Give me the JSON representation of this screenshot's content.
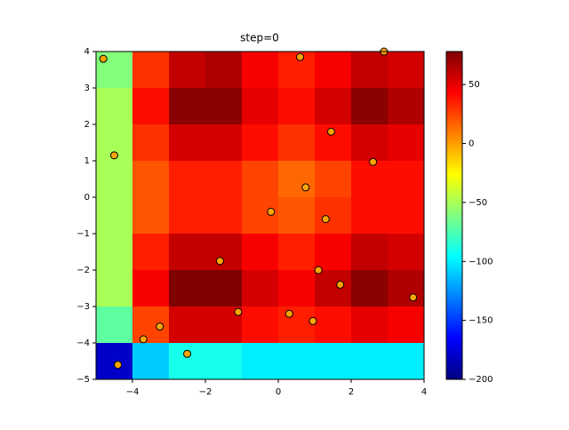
{
  "chart_data": {
    "type": "heatmap",
    "title": "step=0",
    "heatmap": {
      "x": [
        -4.5,
        -3.5,
        -2.5,
        -1.5,
        -0.5,
        0.5,
        1.5,
        2.5,
        3.5
      ],
      "y": [
        3.5,
        2.5,
        1.5,
        0.5,
        -0.5,
        -1.5,
        -2.5,
        -3.5,
        -4.5
      ],
      "z": [
        [
          -60,
          30,
          60,
          65,
          45,
          35,
          45,
          60,
          55
        ],
        [
          -50,
          40,
          75,
          75,
          50,
          40,
          55,
          75,
          65
        ],
        [
          -50,
          30,
          55,
          55,
          40,
          30,
          40,
          55,
          50
        ],
        [
          -50,
          20,
          35,
          35,
          25,
          15,
          25,
          40,
          40
        ],
        [
          -50,
          20,
          35,
          35,
          25,
          20,
          30,
          40,
          40
        ],
        [
          -50,
          35,
          60,
          60,
          45,
          35,
          45,
          60,
          55
        ],
        [
          -50,
          45,
          78,
          78,
          55,
          45,
          60,
          75,
          65
        ],
        [
          -70,
          25,
          55,
          55,
          40,
          35,
          40,
          50,
          45
        ],
        [
          -180,
          -110,
          -90,
          -90,
          -100,
          -100,
          -100,
          -100,
          -100
        ]
      ]
    },
    "colormap": "jet",
    "clim": [
      -200,
      78
    ],
    "cticks": [
      {
        "value": -200,
        "label": "−200"
      },
      {
        "value": -150,
        "label": "−150"
      },
      {
        "value": -100,
        "label": "−100"
      },
      {
        "value": -50,
        "label": "−50"
      },
      0,
      50
    ],
    "scatter": {
      "color": "#ffa500",
      "x": [
        -4.8,
        0.6,
        2.9,
        1.45,
        -4.5,
        2.6,
        0.75,
        -0.2,
        1.3,
        -1.6,
        1.1,
        1.7,
        3.7,
        -1.1,
        0.3,
        -3.25,
        0.95,
        -3.7,
        -2.5,
        -4.4
      ],
      "y": [
        3.8,
        3.85,
        4.0,
        1.8,
        1.15,
        0.97,
        0.27,
        -0.4,
        -0.6,
        -1.75,
        -2.0,
        -2.4,
        -2.75,
        -3.15,
        -3.2,
        -3.55,
        -3.4,
        -3.9,
        -4.3,
        -4.6
      ]
    },
    "xlim": [
      -5,
      4
    ],
    "ylim": [
      -5,
      4
    ],
    "xticks": [
      {
        "value": -4,
        "label": "−4"
      },
      {
        "value": -2,
        "label": "−2"
      },
      0,
      2,
      4
    ],
    "yticks": [
      {
        "value": -5,
        "label": "−5"
      },
      {
        "value": -4,
        "label": "−4"
      },
      {
        "value": -3,
        "label": "−3"
      },
      {
        "value": -2,
        "label": "−2"
      },
      {
        "value": -1,
        "label": "−1"
      },
      0,
      1,
      2,
      3,
      4
    ]
  }
}
